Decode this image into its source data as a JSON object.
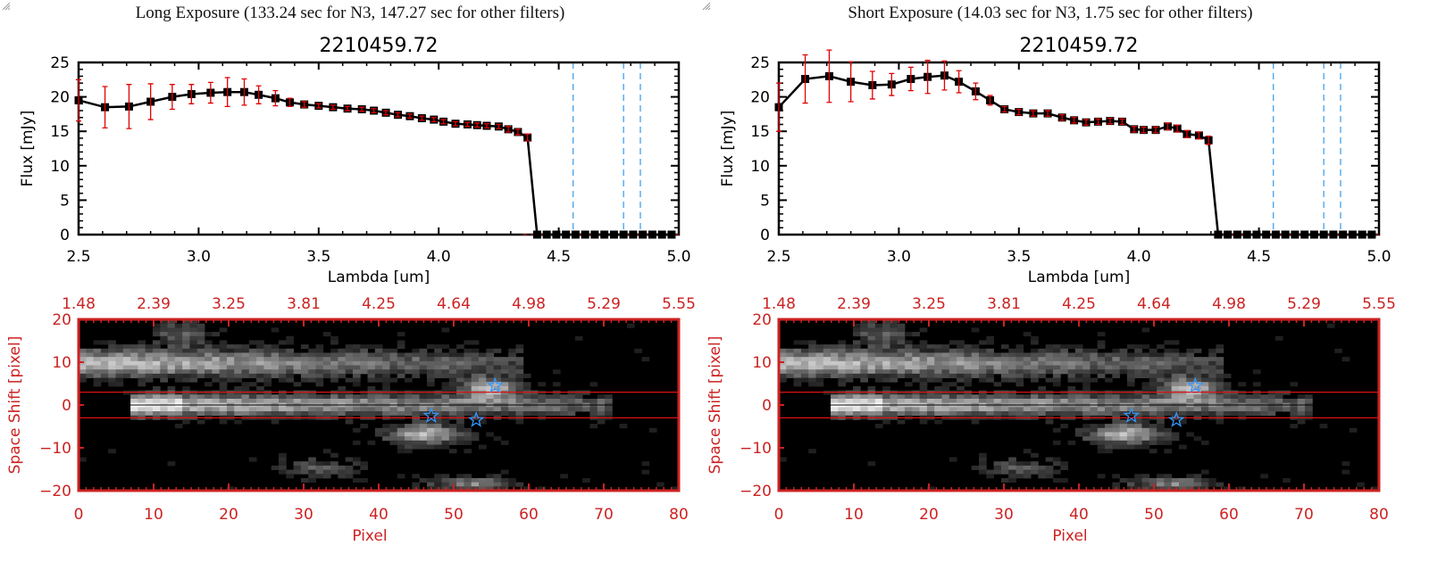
{
  "panels": [
    {
      "id": "long",
      "title": "Long Exposure (133.24 sec for N3, 147.27 sec for other filters)",
      "spectrum": {
        "object_id": "2210459.72",
        "xlabel": "Lambda [um]",
        "ylabel": "Flux [mJy]",
        "xlim": [
          2.5,
          5.0
        ],
        "ylim": [
          0,
          25
        ],
        "xticks": [
          "2.5",
          "3.0",
          "3.5",
          "4.0",
          "4.5",
          "5.0"
        ],
        "yticks": [
          "0",
          "5",
          "10",
          "15",
          "20",
          "25"
        ],
        "filter_lines": [
          4.56,
          4.77,
          4.84
        ],
        "x": [
          2.5,
          2.61,
          2.71,
          2.8,
          2.89,
          2.97,
          3.05,
          3.12,
          3.19,
          3.25,
          3.32,
          3.38,
          3.44,
          3.5,
          3.56,
          3.62,
          3.68,
          3.73,
          3.78,
          3.83,
          3.88,
          3.93,
          3.98,
          4.02,
          4.07,
          4.12,
          4.16,
          4.2,
          4.25,
          4.29,
          4.33,
          4.37,
          4.41,
          4.45,
          4.49,
          4.53,
          4.57,
          4.61,
          4.65,
          4.69,
          4.73,
          4.77,
          4.81,
          4.85,
          4.89,
          4.93,
          4.97
        ],
        "y": [
          19.5,
          18.5,
          18.6,
          19.3,
          20.0,
          20.4,
          20.6,
          20.7,
          20.7,
          20.3,
          19.8,
          19.2,
          18.9,
          18.7,
          18.5,
          18.3,
          18.2,
          18.0,
          17.7,
          17.4,
          17.2,
          16.9,
          16.7,
          16.4,
          16.1,
          16.0,
          15.9,
          15.8,
          15.7,
          15.3,
          14.9,
          14.1,
          0,
          0,
          0,
          0,
          0,
          0,
          0,
          0,
          0,
          0,
          0,
          0,
          0,
          0,
          0
        ],
        "err": [
          3.0,
          3.0,
          3.2,
          2.6,
          1.8,
          1.4,
          1.5,
          2.1,
          1.9,
          1.3,
          1.1,
          0.6,
          0.4,
          0.3,
          0.3,
          0.3,
          0.3,
          0.3,
          0.3,
          0.3,
          0.3,
          0.3,
          0.3,
          0.3,
          0.3,
          0.3,
          0.3,
          0.3,
          0.3,
          0.4,
          0.4,
          0.5,
          0,
          0,
          0,
          0,
          0,
          0,
          0,
          0,
          0,
          0,
          0,
          0,
          0,
          0,
          0
        ]
      },
      "image": {
        "xlabel": "Pixel",
        "ylabel": "Space Shift [pixel]",
        "xlim": [
          0,
          80
        ],
        "ylim": [
          -20,
          20
        ],
        "xticks": [
          "0",
          "10",
          "20",
          "30",
          "40",
          "50",
          "60",
          "70",
          "80"
        ],
        "yticks": [
          "-20",
          "-10",
          "0",
          "10",
          "20"
        ],
        "top_ticks": [
          "1.48",
          "2.39",
          "3.25",
          "3.81",
          "4.25",
          "4.64",
          "4.98",
          "5.29",
          "5.55"
        ],
        "aperture": [
          -3,
          3
        ],
        "stars": [
          [
            55.5,
            4.5
          ],
          [
            47,
            -2.5
          ],
          [
            53,
            -3.5
          ]
        ]
      }
    },
    {
      "id": "short",
      "title": "Short Exposure (14.03 sec for N3, 1.75 sec for other filters)",
      "spectrum": {
        "object_id": "2210459.72",
        "xlabel": "Lambda [um]",
        "ylabel": "Flux [mJy]",
        "xlim": [
          2.5,
          5.0
        ],
        "ylim": [
          0,
          25
        ],
        "xticks": [
          "2.5",
          "3.0",
          "3.5",
          "4.0",
          "4.5",
          "5.0"
        ],
        "yticks": [
          "0",
          "5",
          "10",
          "15",
          "20",
          "25"
        ],
        "filter_lines": [
          4.56,
          4.77,
          4.84
        ],
        "x": [
          2.5,
          2.61,
          2.71,
          2.8,
          2.89,
          2.97,
          3.05,
          3.12,
          3.19,
          3.25,
          3.32,
          3.38,
          3.44,
          3.5,
          3.56,
          3.62,
          3.68,
          3.73,
          3.78,
          3.83,
          3.88,
          3.93,
          3.98,
          4.02,
          4.07,
          4.12,
          4.16,
          4.2,
          4.25,
          4.29,
          4.33,
          4.37,
          4.41,
          4.45,
          4.49,
          4.53,
          4.57,
          4.61,
          4.65,
          4.69,
          4.73,
          4.77,
          4.81,
          4.85,
          4.89,
          4.93,
          4.97
        ],
        "y": [
          18.5,
          22.6,
          23.0,
          22.2,
          21.7,
          21.8,
          22.6,
          22.9,
          23.1,
          22.2,
          20.8,
          19.5,
          18.2,
          17.8,
          17.6,
          17.6,
          17.0,
          16.6,
          16.3,
          16.4,
          16.5,
          16.4,
          15.3,
          15.2,
          15.2,
          15.7,
          15.4,
          14.6,
          14.4,
          13.7,
          0,
          0,
          0,
          0,
          0,
          0,
          0,
          0,
          0,
          0,
          0,
          0,
          0,
          0,
          0,
          0,
          0
        ],
        "err": [
          3.5,
          3.5,
          3.8,
          2.9,
          2.0,
          1.6,
          1.7,
          2.4,
          2.1,
          1.6,
          1.2,
          0.7,
          0.4,
          0.4,
          0.4,
          0.4,
          0.4,
          0.4,
          0.4,
          0.4,
          0.4,
          0.4,
          0.4,
          0.4,
          0.4,
          0.5,
          0.5,
          0.5,
          0.5,
          0.6,
          0,
          0,
          0,
          0,
          0,
          0,
          0,
          0,
          0,
          0,
          0,
          0,
          0,
          0,
          0,
          0,
          0
        ]
      },
      "image": {
        "xlabel": "Pixel",
        "ylabel": "Space Shift [pixel]",
        "xlim": [
          0,
          80
        ],
        "ylim": [
          -20,
          20
        ],
        "xticks": [
          "0",
          "10",
          "20",
          "30",
          "40",
          "50",
          "60",
          "70",
          "80"
        ],
        "yticks": [
          "-20",
          "-10",
          "0",
          "10",
          "20"
        ],
        "top_ticks": [
          "1.48",
          "2.39",
          "3.25",
          "3.81",
          "4.25",
          "4.64",
          "4.98",
          "5.29",
          "5.55"
        ],
        "aperture": [
          -3,
          3
        ],
        "stars": [
          [
            55.5,
            4.5
          ],
          [
            47,
            -2.5
          ],
          [
            53,
            -3.5
          ]
        ]
      }
    }
  ],
  "colors": {
    "line": "#000000",
    "errorbar": "#e00000",
    "filter_line": "#3399ee",
    "image_axis": "#cc2222",
    "star": "#3399ff"
  },
  "chart_data": [
    {
      "type": "line",
      "title": "2210459.72",
      "subtitle": "Long Exposure (133.24 sec for N3, 147.27 sec for other filters)",
      "xlabel": "Lambda [um]",
      "ylabel": "Flux [mJy]",
      "xlim": [
        2.5,
        5.0
      ],
      "ylim": [
        0,
        25
      ],
      "series": [
        {
          "name": "flux",
          "x": [
            2.5,
            2.61,
            2.71,
            2.8,
            2.89,
            2.97,
            3.05,
            3.12,
            3.19,
            3.25,
            3.32,
            3.38,
            3.44,
            3.5,
            3.56,
            3.62,
            3.68,
            3.73,
            3.78,
            3.83,
            3.88,
            3.93,
            3.98,
            4.02,
            4.07,
            4.12,
            4.16,
            4.2,
            4.25,
            4.29,
            4.33,
            4.37
          ],
          "y": [
            19.5,
            18.5,
            18.6,
            19.3,
            20.0,
            20.4,
            20.6,
            20.7,
            20.7,
            20.3,
            19.8,
            19.2,
            18.9,
            18.7,
            18.5,
            18.3,
            18.2,
            18.0,
            17.7,
            17.4,
            17.2,
            16.9,
            16.7,
            16.4,
            16.1,
            16.0,
            15.9,
            15.8,
            15.7,
            15.3,
            14.9,
            14.1
          ]
        }
      ],
      "grid": false
    },
    {
      "type": "line",
      "title": "2210459.72",
      "subtitle": "Short Exposure (14.03 sec for N3, 1.75 sec for other filters)",
      "xlabel": "Lambda [um]",
      "ylabel": "Flux [mJy]",
      "xlim": [
        2.5,
        5.0
      ],
      "ylim": [
        0,
        25
      ],
      "series": [
        {
          "name": "flux",
          "x": [
            2.5,
            2.61,
            2.71,
            2.8,
            2.89,
            2.97,
            3.05,
            3.12,
            3.19,
            3.25,
            3.32,
            3.38,
            3.44,
            3.5,
            3.56,
            3.62,
            3.68,
            3.73,
            3.78,
            3.83,
            3.88,
            3.93,
            3.98,
            4.02,
            4.07,
            4.12,
            4.16,
            4.2,
            4.25,
            4.29
          ],
          "y": [
            18.5,
            22.6,
            23.0,
            22.2,
            21.7,
            21.8,
            22.6,
            22.9,
            23.1,
            22.2,
            20.8,
            19.5,
            18.2,
            17.8,
            17.6,
            17.6,
            17.0,
            16.6,
            16.3,
            16.4,
            16.5,
            16.4,
            15.3,
            15.2,
            15.2,
            15.7,
            15.4,
            14.6,
            14.4,
            13.7
          ]
        }
      ],
      "grid": false
    },
    {
      "type": "heatmap",
      "title": "Long exposure spectral image",
      "xlabel": "Pixel",
      "ylabel": "Space Shift [pixel]",
      "xlim": [
        0,
        80
      ],
      "ylim": [
        -20,
        20
      ],
      "top_axis_ticks": [
        "1.48",
        "2.39",
        "3.25",
        "3.81",
        "4.25",
        "4.64",
        "4.98",
        "5.29",
        "5.55"
      ]
    },
    {
      "type": "heatmap",
      "title": "Short exposure spectral image",
      "xlabel": "Pixel",
      "ylabel": "Space Shift [pixel]",
      "xlim": [
        0,
        80
      ],
      "ylim": [
        -20,
        20
      ],
      "top_axis_ticks": [
        "1.48",
        "2.39",
        "3.25",
        "3.81",
        "4.25",
        "4.64",
        "4.98",
        "5.29",
        "5.55"
      ]
    }
  ]
}
